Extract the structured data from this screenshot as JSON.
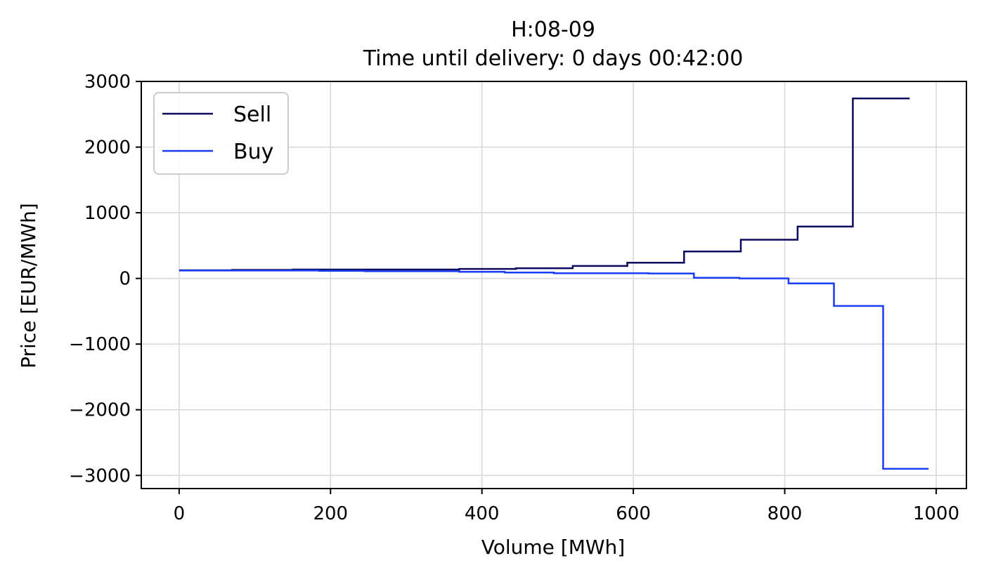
{
  "chart_data": {
    "type": "line",
    "step": "post",
    "title": "H:08-09",
    "subtitle": "Time until delivery: 0 days 00:42:00",
    "xlabel": "Volume [MWh]",
    "ylabel": "Price [EUR/MWh]",
    "xlim": [
      -50,
      1040
    ],
    "ylim": [
      -3200,
      3000
    ],
    "xticks": [
      0,
      200,
      400,
      600,
      800,
      1000
    ],
    "yticks": [
      3000,
      2000,
      1000,
      0,
      -1000,
      -2000,
      -3000
    ],
    "xtick_labels": [
      "0",
      "200",
      "400",
      "600",
      "800",
      "1000"
    ],
    "ytick_labels": [
      "3000",
      "2000",
      "1000",
      "0",
      "−1000",
      "−2000",
      "−3000"
    ],
    "grid": true,
    "legend": "top-left",
    "series": [
      {
        "name": "Sell",
        "color": "#0a0a5e",
        "x": [
          0,
          70,
          150,
          370,
          445,
          520,
          592,
          667,
          742,
          817,
          890,
          965
        ],
        "y": [
          125,
          130,
          135,
          145,
          155,
          190,
          240,
          410,
          590,
          790,
          2740,
          2740
        ]
      },
      {
        "name": "Buy",
        "color": "#1a3cf5",
        "x": [
          0,
          185,
          245,
          370,
          430,
          495,
          620,
          680,
          740,
          805,
          865,
          930,
          990
        ],
        "y": [
          120,
          115,
          110,
          100,
          90,
          80,
          75,
          10,
          0,
          -75,
          -420,
          -2900,
          -2900
        ]
      }
    ]
  }
}
